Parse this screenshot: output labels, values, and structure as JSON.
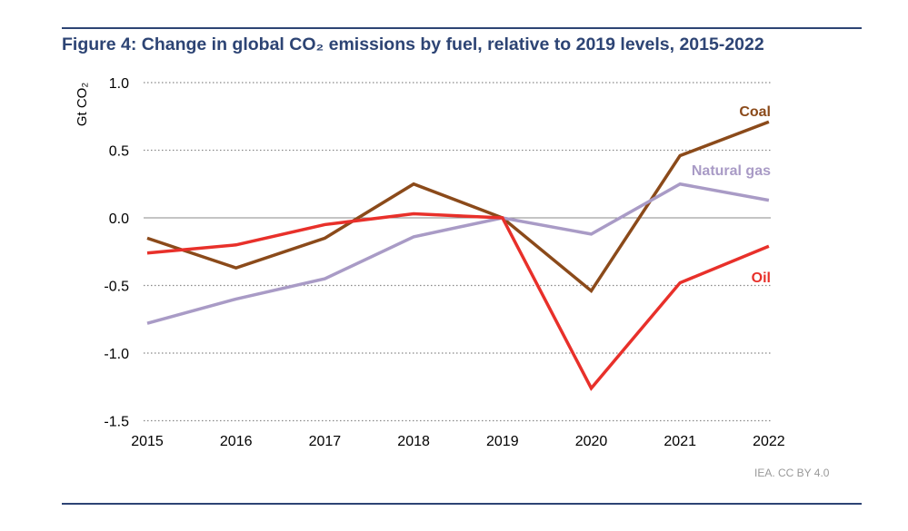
{
  "chart_data": {
    "type": "line",
    "title": "Figure 4: Change in global CO₂ emissions by fuel, relative to 2019 levels, 2015-2022",
    "ylabel": "Gt CO₂",
    "xlabel": "",
    "x": [
      2015,
      2016,
      2017,
      2018,
      2019,
      2020,
      2021,
      2022
    ],
    "ylim": [
      -1.5,
      1.0
    ],
    "yticks": [
      "1.0",
      "0.5",
      "0.0",
      "-0.5",
      "-1.0",
      "-1.5"
    ],
    "ytick_values": [
      1.0,
      0.5,
      0.0,
      -0.5,
      -1.0,
      -1.5
    ],
    "grid": "horizontal dotted",
    "series": [
      {
        "name": "Coal",
        "color": "#8b4a1a",
        "values": [
          -0.15,
          -0.37,
          -0.15,
          0.25,
          0.0,
          -0.54,
          0.46,
          0.71
        ]
      },
      {
        "name": "Natural gas",
        "color": "#a99bc6",
        "values": [
          -0.78,
          -0.6,
          -0.45,
          -0.14,
          0.0,
          -0.12,
          0.25,
          0.13
        ]
      },
      {
        "name": "Oil",
        "color": "#e8302a",
        "values": [
          -0.26,
          -0.2,
          -0.05,
          0.03,
          0.0,
          -1.26,
          -0.48,
          -0.21
        ]
      }
    ],
    "source": "IEA. CC BY 4.0"
  }
}
